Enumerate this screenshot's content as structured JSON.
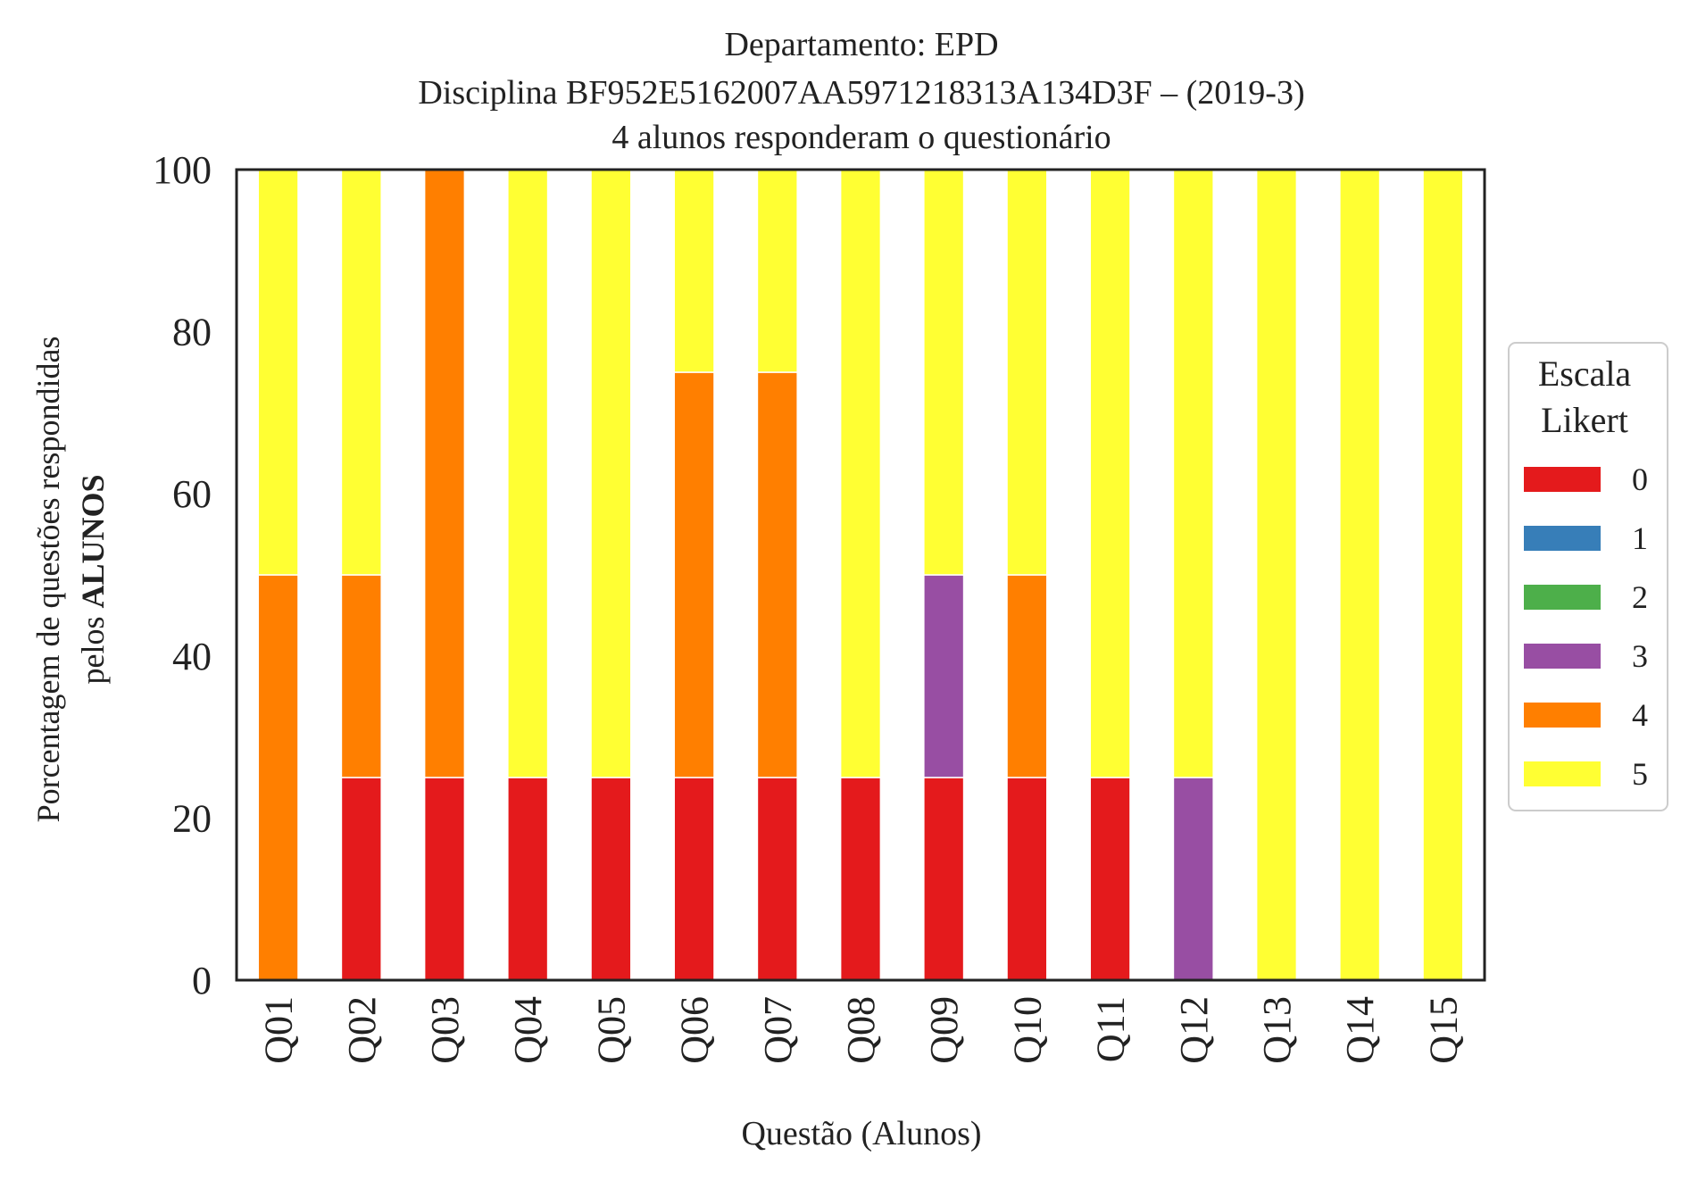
{
  "chart_data": {
    "type": "bar",
    "stacked": true,
    "title": [
      "Departamento: EPD",
      "Disciplina BF952E5162007AA5971218313A134D3F – (2019-3)",
      "4 alunos responderam o questionário"
    ],
    "xlabel": "Questão (Alunos)",
    "ylabel": {
      "line1": "Porcentagem de questões respondidas",
      "line2_prefix": "pelos ",
      "line2_bold": "ALUNOS"
    },
    "ylim": [
      0,
      100
    ],
    "yticks": [
      0,
      20,
      40,
      60,
      80,
      100
    ],
    "grid": false,
    "categories": [
      "Q01",
      "Q02",
      "Q03",
      "Q04",
      "Q05",
      "Q06",
      "Q07",
      "Q08",
      "Q09",
      "Q10",
      "Q11",
      "Q12",
      "Q13",
      "Q14",
      "Q15"
    ],
    "legend": {
      "title": [
        "Escala",
        "Likert"
      ],
      "placement": "right"
    },
    "series": [
      {
        "name": "0",
        "color": "#e41a1c",
        "values": [
          0,
          25,
          25,
          25,
          25,
          25,
          25,
          25,
          25,
          25,
          25,
          0,
          0,
          0,
          0
        ]
      },
      {
        "name": "1",
        "color": "#377eb8",
        "values": [
          0,
          0,
          0,
          0,
          0,
          0,
          0,
          0,
          0,
          0,
          0,
          0,
          0,
          0,
          0
        ]
      },
      {
        "name": "2",
        "color": "#4daf4a",
        "values": [
          0,
          0,
          0,
          0,
          0,
          0,
          0,
          0,
          0,
          0,
          0,
          0,
          0,
          0,
          0
        ]
      },
      {
        "name": "3",
        "color": "#984ea3",
        "values": [
          0,
          0,
          0,
          0,
          0,
          0,
          0,
          0,
          25,
          0,
          0,
          25,
          0,
          0,
          0
        ]
      },
      {
        "name": "4",
        "color": "#ff7f00",
        "values": [
          50,
          25,
          75,
          0,
          0,
          50,
          50,
          0,
          0,
          25,
          0,
          0,
          0,
          0,
          0
        ]
      },
      {
        "name": "5",
        "color": "#ffff33",
        "values": [
          50,
          50,
          0,
          75,
          75,
          25,
          25,
          75,
          50,
          50,
          75,
          75,
          100,
          100,
          100
        ]
      }
    ]
  }
}
